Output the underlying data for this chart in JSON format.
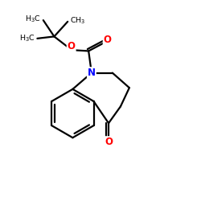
{
  "bg_color": "#ffffff",
  "atom_colors": {
    "N": "#0000ff",
    "O": "#ff0000",
    "C": "#000000"
  },
  "line_color": "#000000",
  "line_width": 1.6,
  "figsize": [
    2.5,
    2.5
  ],
  "dpi": 100
}
